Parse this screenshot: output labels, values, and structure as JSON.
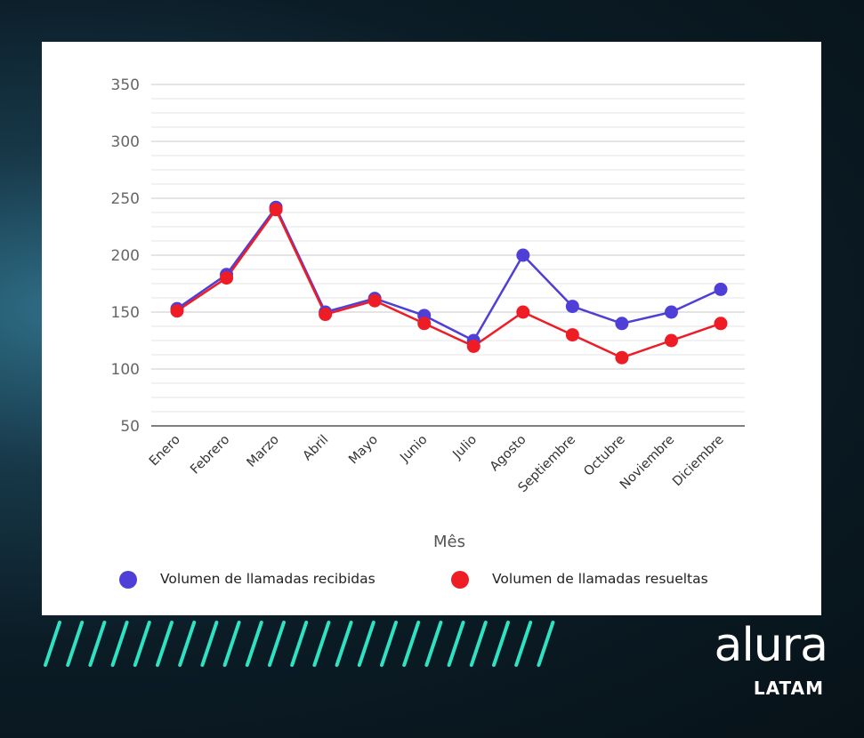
{
  "chart_data": {
    "type": "line",
    "categories": [
      "Enero",
      "Febrero",
      "Marzo",
      "Abril",
      "Mayo",
      "Junio",
      "Julio",
      "Agosto",
      "Septiembre",
      "Octubre",
      "Noviembre",
      "Diciembre"
    ],
    "series": [
      {
        "name": "Volumen de llamadas recibidas",
        "color": "#4f3fd6",
        "values": [
          153,
          183,
          242,
          150,
          162,
          147,
          125,
          200,
          155,
          140,
          150,
          170
        ]
      },
      {
        "name": "Volumen de llamadas resueltas",
        "color": "#ee1c24",
        "values": [
          151,
          180,
          240,
          148,
          160,
          140,
          120,
          150,
          130,
          110,
          125,
          140
        ]
      }
    ],
    "xlabel": "Mês",
    "ylabel": "",
    "ylim": [
      50,
      350
    ],
    "yticks": [
      50,
      100,
      150,
      200,
      250,
      300,
      350
    ],
    "grid": true,
    "legend": "bottom"
  },
  "brand": {
    "name": "alura",
    "sub": "LATAM"
  }
}
